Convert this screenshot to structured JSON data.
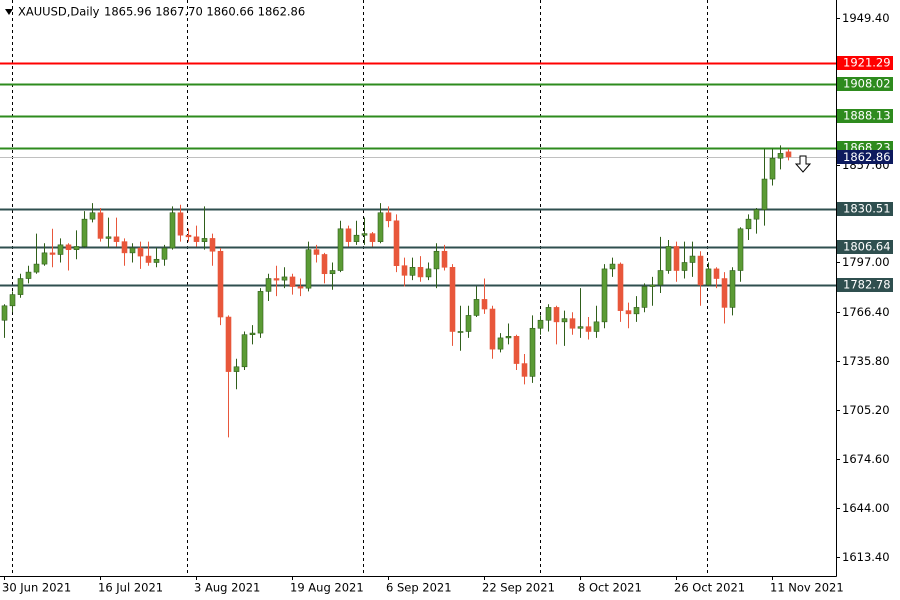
{
  "chart_data": {
    "type": "candlestick",
    "symbol": "XAUUSD,Daily",
    "ohlc_label": "1865.96 1867.70 1860.66 1862.86",
    "categories": [
      "30 Jun 2021",
      null,
      null,
      null,
      null,
      null,
      null,
      null,
      null,
      null,
      null,
      null,
      "16 Jul 2021",
      null,
      null,
      null,
      null,
      null,
      null,
      null,
      null,
      null,
      null,
      null,
      "3 Aug 2021",
      null,
      null,
      null,
      null,
      null,
      null,
      null,
      null,
      null,
      null,
      null,
      "19 Aug 2021",
      null,
      null,
      null,
      null,
      null,
      null,
      null,
      null,
      null,
      null,
      null,
      "6 Sep 2021",
      null,
      null,
      null,
      null,
      null,
      null,
      null,
      null,
      null,
      null,
      null,
      "22 Sep 2021",
      null,
      null,
      null,
      null,
      null,
      null,
      null,
      null,
      null,
      null,
      null,
      "8 Oct 2021",
      null,
      null,
      null,
      null,
      null,
      null,
      null,
      null,
      null,
      null,
      null,
      "26 Oct 2021",
      null,
      null,
      null,
      null,
      null,
      null,
      null,
      null,
      null,
      null,
      null,
      "11 Nov 2021",
      null,
      null
    ],
    "open": [
      1761,
      1770,
      1777,
      1787,
      1791,
      1796,
      1803,
      1802,
      1808,
      1805,
      1807,
      1824,
      1828,
      1812,
      1813,
      1810,
      1803,
      1806,
      1801,
      1797,
      1799,
      1806,
      1828,
      1814,
      1813,
      1810,
      1812,
      1804,
      1763,
      1729,
      1732,
      1752,
      1753,
      1779,
      1787,
      1786,
      1788,
      1782,
      1781,
      1805,
      1802,
      1790,
      1792,
      1818,
      1810,
      1814,
      1815,
      1810,
      1828,
      1823,
      1795,
      1789,
      1794,
      1788,
      1793,
      1804,
      1794,
      1754,
      1754,
      1764,
      1774,
      1768,
      1743,
      1750,
      1751,
      1734,
      1726,
      1756,
      1761,
      1769,
      1760,
      1762,
      1756,
      1757,
      1754,
      1760,
      1793,
      1796,
      1767,
      1765,
      1769,
      1782,
      1783,
      1792,
      1807,
      1792,
      1797,
      1801,
      1783,
      1793,
      1787,
      1769,
      1792,
      1818,
      1824,
      1830,
      1849,
      1862,
      1865.96
    ],
    "high": [
      1771,
      1779,
      1790,
      1795,
      1815,
      1809,
      1818,
      1812,
      1809,
      1817,
      1829,
      1834,
      1831,
      1825,
      1825,
      1812,
      1809,
      1810,
      1810,
      1806,
      1808,
      1832,
      1833,
      1818,
      1820,
      1832,
      1815,
      1806,
      1764,
      1737,
      1754,
      1758,
      1781,
      1790,
      1795,
      1794,
      1790,
      1787,
      1810,
      1808,
      1803,
      1797,
      1823,
      1820,
      1823,
      1825,
      1816,
      1834,
      1832,
      1827,
      1800,
      1800,
      1801,
      1797,
      1809,
      1808,
      1796,
      1770,
      1770,
      1782,
      1787,
      1770,
      1753,
      1759,
      1752,
      1740,
      1764,
      1764,
      1771,
      1770,
      1767,
      1766,
      1781,
      1763,
      1770,
      1796,
      1800,
      1797,
      1772,
      1776,
      1784,
      1788,
      1813,
      1811,
      1810,
      1810,
      1810,
      1804,
      1797,
      1794,
      1791,
      1794,
      1819,
      1827,
      1831,
      1868,
      1868,
      1870,
      1867.7
    ],
    "low": [
      1750,
      1766,
      1775,
      1784,
      1790,
      1795,
      1794,
      1797,
      1792,
      1799,
      1806,
      1822,
      1810,
      1806,
      1807,
      1795,
      1797,
      1793,
      1795,
      1794,
      1795,
      1805,
      1810,
      1810,
      1807,
      1805,
      1795,
      1758,
      1688,
      1718,
      1730,
      1746,
      1750,
      1773,
      1776,
      1781,
      1777,
      1776,
      1779,
      1797,
      1784,
      1780,
      1791,
      1807,
      1808,
      1808,
      1807,
      1809,
      1819,
      1791,
      1782,
      1786,
      1785,
      1786,
      1781,
      1792,
      1745,
      1742,
      1750,
      1763,
      1765,
      1737,
      1741,
      1746,
      1730,
      1721,
      1722,
      1752,
      1754,
      1746,
      1745,
      1752,
      1750,
      1749,
      1750,
      1756,
      1788,
      1760,
      1756,
      1760,
      1766,
      1770,
      1778,
      1790,
      1785,
      1787,
      1788,
      1770,
      1782,
      1781,
      1759,
      1764,
      1785,
      1811,
      1815,
      1820,
      1845,
      1855,
      1860.66
    ],
    "close": [
      1770,
      1777,
      1787,
      1791,
      1796,
      1803,
      1802,
      1808,
      1805,
      1807,
      1824,
      1828,
      1812,
      1813,
      1810,
      1803,
      1806,
      1801,
      1797,
      1799,
      1806,
      1828,
      1814,
      1813,
      1810,
      1812,
      1804,
      1763,
      1729,
      1732,
      1752,
      1753,
      1779,
      1787,
      1786,
      1788,
      1782,
      1781,
      1805,
      1802,
      1790,
      1792,
      1818,
      1810,
      1814,
      1815,
      1810,
      1828,
      1823,
      1795,
      1789,
      1794,
      1788,
      1793,
      1804,
      1794,
      1754,
      1754,
      1764,
      1774,
      1768,
      1743,
      1750,
      1751,
      1734,
      1726,
      1756,
      1761,
      1769,
      1760,
      1762,
      1756,
      1757,
      1754,
      1760,
      1793,
      1796,
      1767,
      1765,
      1769,
      1782,
      1783,
      1792,
      1807,
      1792,
      1797,
      1801,
      1783,
      1793,
      1787,
      1769,
      1792,
      1818,
      1824,
      1830,
      1849,
      1862,
      1865,
      1862.86
    ],
    "up_color": "#5b9b35",
    "down_color": "#e8573b",
    "current_color": "#0d1a5e",
    "ylim": [
      1601.6,
      1960.6
    ],
    "yticks": [
      {
        "value": 1949.4,
        "label": "1949.40"
      },
      {
        "value": 1857.6,
        "label": "1857.60"
      },
      {
        "value": 1797,
        "label": "1797.00"
      },
      {
        "value": 1766.4,
        "label": "1766.40"
      },
      {
        "value": 1735.8,
        "label": "1735.80"
      },
      {
        "value": 1705.2,
        "label": "1705.20"
      },
      {
        "value": 1674.6,
        "label": "1674.60"
      },
      {
        "value": 1644,
        "label": "1644.00"
      },
      {
        "value": 1613.4,
        "label": "1613.40"
      }
    ],
    "levels": [
      {
        "value": 1921.29,
        "color": "#ff0000"
      },
      {
        "value": 1908.02,
        "color": "#2e8b1e"
      },
      {
        "value": 1888.13,
        "color": "#2e8b1e"
      },
      {
        "value": 1868.23,
        "color": "#2e8b1e"
      },
      {
        "value": 1830.51,
        "color": "#2f4f4f"
      },
      {
        "value": 1806.64,
        "color": "#2f4f4f"
      },
      {
        "value": 1782.78,
        "color": "#2f4f4f"
      }
    ]
  }
}
